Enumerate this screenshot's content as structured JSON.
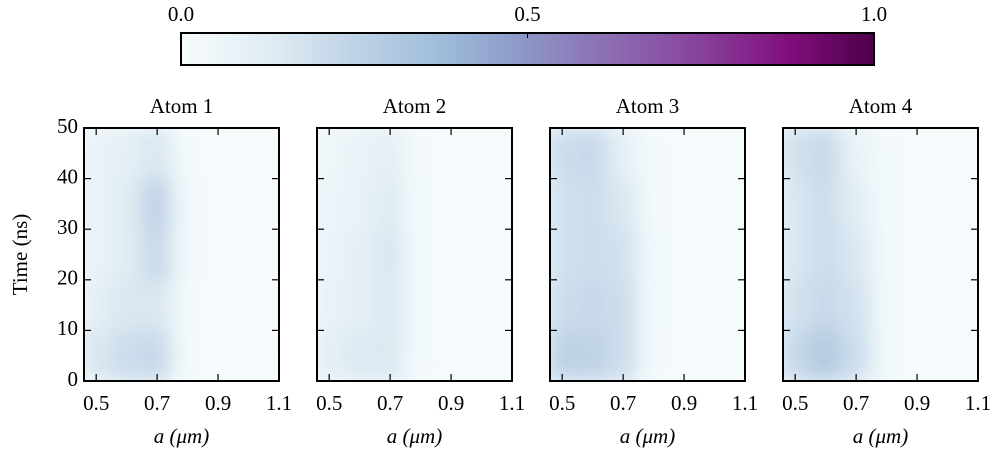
{
  "colorbar": {
    "lim": [
      0,
      1
    ],
    "ticks": [
      {
        "value": 0,
        "label": "0.0"
      },
      0.5,
      {
        "value": 1,
        "label": "1.0"
      }
    ],
    "colors": [
      "#f7fcfd",
      "#e0ecf4",
      "#bfd3e6",
      "#9ebcda",
      "#8c96c6",
      "#8c6bb1",
      "#88419d",
      "#810f7c",
      "#4d004b"
    ]
  },
  "chart_data": [
    {
      "type": "heatmap",
      "title": "Atom 1",
      "xlabel": "a  (μm)",
      "ylabel": "Time (ns)",
      "x": [
        0.5,
        0.6,
        0.7,
        0.8,
        0.9,
        1.0,
        1.1
      ],
      "y": [
        5,
        15,
        25,
        35,
        45
      ],
      "z": [
        [
          0.15,
          0.2,
          0.22,
          0.02,
          0.01,
          0.01,
          0.01
        ],
        [
          0.1,
          0.15,
          0.15,
          0.02,
          0.01,
          0.01,
          0.01
        ],
        [
          0.08,
          0.12,
          0.22,
          0.03,
          0.01,
          0.01,
          0.01
        ],
        [
          0.08,
          0.12,
          0.25,
          0.03,
          0.01,
          0.01,
          0.01
        ],
        [
          0.08,
          0.1,
          0.15,
          0.02,
          0.01,
          0.01,
          0.01
        ]
      ],
      "xlim": [
        0.46,
        1.1
      ],
      "ylim": [
        0,
        50
      ],
      "xticks": [
        0.5,
        0.7,
        0.9,
        1.1
      ],
      "yticks": [
        0,
        10,
        20,
        30,
        40,
        50
      ]
    },
    {
      "type": "heatmap",
      "title": "Atom 2",
      "xlabel": "a  (μm)",
      "x": [
        0.5,
        0.6,
        0.7,
        0.8,
        0.9,
        1.0,
        1.1
      ],
      "y": [
        5,
        15,
        25,
        35,
        45
      ],
      "z": [
        [
          0.1,
          0.14,
          0.14,
          0.02,
          0.01,
          0.01,
          0.01
        ],
        [
          0.08,
          0.1,
          0.14,
          0.02,
          0.01,
          0.01,
          0.01
        ],
        [
          0.07,
          0.1,
          0.15,
          0.02,
          0.01,
          0.01,
          0.01
        ],
        [
          0.06,
          0.08,
          0.13,
          0.02,
          0.01,
          0.01,
          0.01
        ],
        [
          0.05,
          0.08,
          0.1,
          0.02,
          0.01,
          0.01,
          0.01
        ]
      ],
      "xlim": [
        0.46,
        1.1
      ],
      "ylim": [
        0,
        50
      ],
      "xticks": [
        0.5,
        0.7,
        0.9,
        1.1
      ],
      "yticks": [
        0,
        10,
        20,
        30,
        40,
        50
      ]
    },
    {
      "type": "heatmap",
      "title": "Atom 3",
      "xlabel": "a  (μm)",
      "x": [
        0.5,
        0.6,
        0.7,
        0.8,
        0.9,
        1.0,
        1.1
      ],
      "y": [
        5,
        15,
        25,
        35,
        45
      ],
      "z": [
        [
          0.25,
          0.25,
          0.2,
          0.02,
          0.01,
          0.01,
          0.01
        ],
        [
          0.2,
          0.22,
          0.2,
          0.03,
          0.01,
          0.01,
          0.01
        ],
        [
          0.18,
          0.2,
          0.18,
          0.03,
          0.01,
          0.01,
          0.01
        ],
        [
          0.18,
          0.2,
          0.15,
          0.02,
          0.01,
          0.01,
          0.01
        ],
        [
          0.2,
          0.22,
          0.1,
          0.02,
          0.01,
          0.01,
          0.01
        ]
      ],
      "xlim": [
        0.46,
        1.1
      ],
      "ylim": [
        0,
        50
      ],
      "xticks": [
        0.5,
        0.7,
        0.9,
        1.1
      ],
      "yticks": [
        0,
        10,
        20,
        30,
        40,
        50
      ]
    },
    {
      "type": "heatmap",
      "title": "Atom 4",
      "xlabel": "a  (μm)",
      "x": [
        0.5,
        0.6,
        0.7,
        0.8,
        0.9,
        1.0,
        1.1
      ],
      "y": [
        5,
        15,
        25,
        35,
        45
      ],
      "z": [
        [
          0.22,
          0.3,
          0.2,
          0.03,
          0.01,
          0.01,
          0.01
        ],
        [
          0.18,
          0.22,
          0.18,
          0.03,
          0.01,
          0.01,
          0.01
        ],
        [
          0.15,
          0.2,
          0.15,
          0.02,
          0.01,
          0.01,
          0.01
        ],
        [
          0.15,
          0.2,
          0.12,
          0.02,
          0.01,
          0.01,
          0.01
        ],
        [
          0.18,
          0.22,
          0.08,
          0.02,
          0.01,
          0.01,
          0.01
        ]
      ],
      "xlim": [
        0.46,
        1.1
      ],
      "ylim": [
        0,
        50
      ],
      "xticks": [
        0.5,
        0.7,
        0.9,
        1.1
      ],
      "yticks": [
        0,
        10,
        20,
        30,
        40,
        50
      ]
    }
  ]
}
